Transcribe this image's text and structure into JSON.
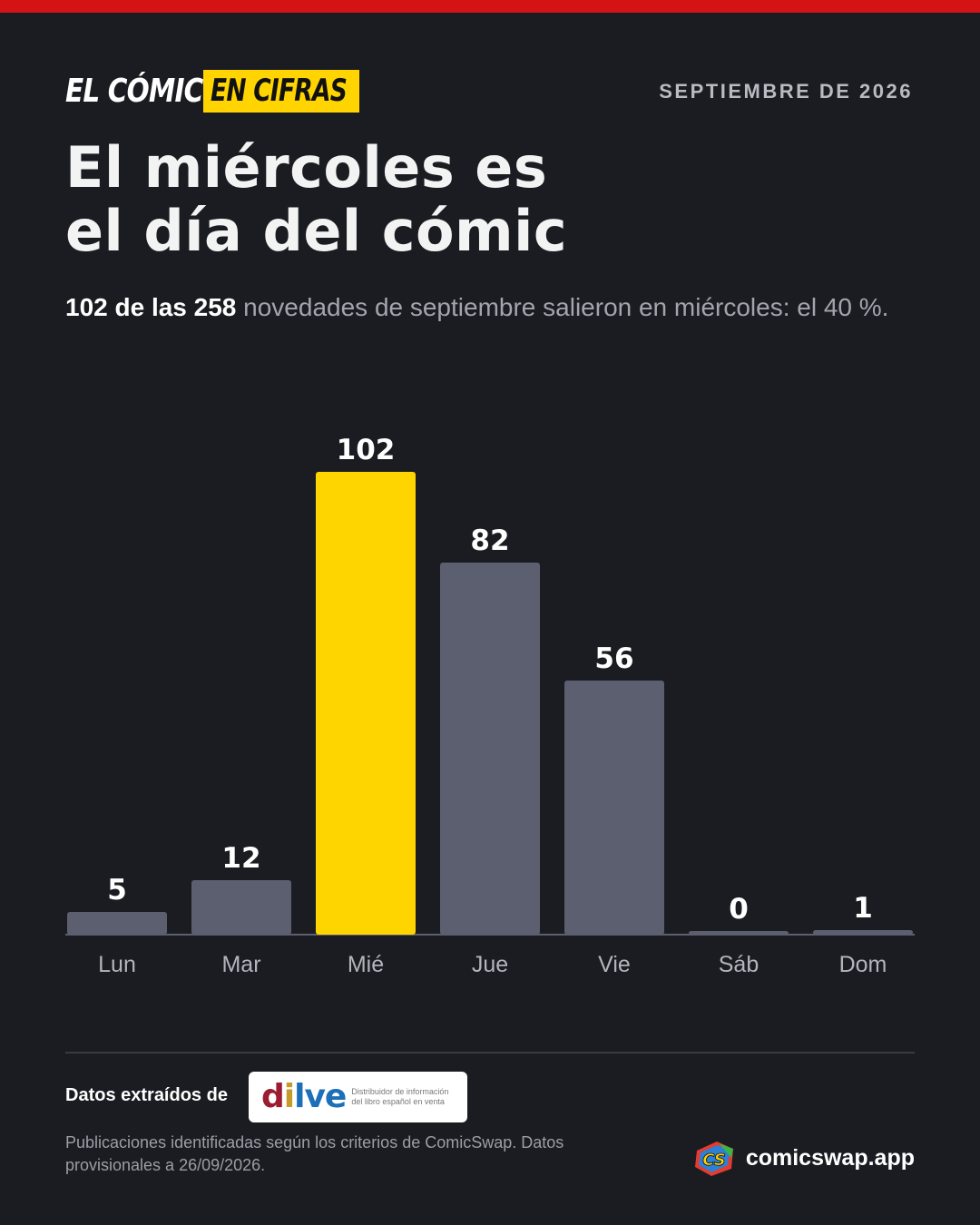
{
  "header": {
    "brand_part1": "EL CÓMIC",
    "brand_part2": "EN CIFRAS",
    "date": "SEPTIEMBRE DE 2026"
  },
  "title": {
    "line1": "El miércoles es",
    "line2": "el día del cómic"
  },
  "subtitle": {
    "bold": "102 de las 258",
    "rest": " novedades de septiembre salieron en miércoles: el 40 %."
  },
  "chart_data": {
    "type": "bar",
    "categories": [
      "Lun",
      "Mar",
      "Mié",
      "Jue",
      "Vie",
      "Sáb",
      "Dom"
    ],
    "values": [
      5,
      12,
      102,
      82,
      56,
      0,
      1
    ],
    "highlight_index": 2,
    "colors": {
      "default": "#5c5f70",
      "highlight": "#ffd500",
      "baseline": "#5c5f70"
    },
    "data_labels": true,
    "grid": false,
    "legend": "none"
  },
  "footer": {
    "source_label": "Datos extraídos de",
    "source_logo": {
      "name": "dilve",
      "tagline_line1": "Distribuidor de información",
      "tagline_line2": "del libro español en venta"
    },
    "note": "Publicaciones identificadas según los criterios de ComicSwap. Datos provisionales a 26/09/2026.",
    "site": "comicswap.app"
  },
  "colors": {
    "background": "#1b1c21",
    "top_bar": "#d41414",
    "accent": "#ffd400"
  }
}
